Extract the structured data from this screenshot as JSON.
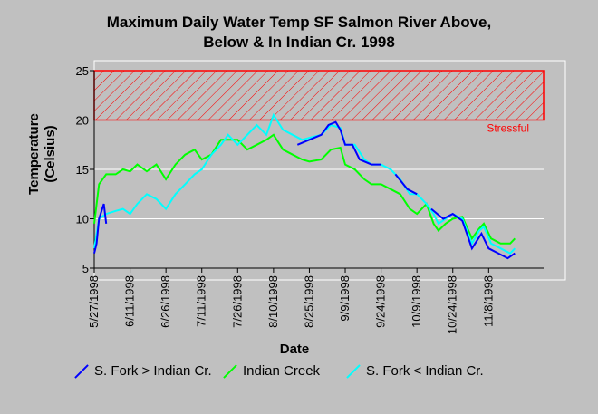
{
  "chart_data": {
    "type": "line",
    "title_line1": "Maximum Daily Water Temp SF Salmon River Above,",
    "title_line2": "Below & In Indian Cr. 1998",
    "xlabel": "Date",
    "ylabel_line1": "Temperature",
    "ylabel_line2": "(Celsius)",
    "ylim": [
      5,
      25
    ],
    "yticks": [
      5,
      10,
      15,
      20,
      25
    ],
    "xlim": [
      "1998-05-27",
      "1998-12-01"
    ],
    "xticks": [
      "5/27/1998",
      "6/11/1998",
      "6/26/1998",
      "7/11/1998",
      "7/26/1998",
      "8/10/1998",
      "8/25/1998",
      "9/9/1998",
      "9/24/1998",
      "10/9/1998",
      "10/24/1998",
      "11/8/1998"
    ],
    "annotation": {
      "label": "Stressful",
      "band": [
        20,
        25
      ]
    },
    "colors": {
      "s_fork_above": "#0000ff",
      "indian_creek": "#00ff00",
      "s_fork_below": "#00ffff",
      "stress": "#ff0000"
    },
    "series": [
      {
        "name": "S. Fork > Indian Cr.",
        "color": "#0000ff",
        "points": [
          [
            "1998-05-27",
            6.5
          ],
          [
            "1998-05-28",
            7.5
          ],
          [
            "1998-05-29",
            10
          ],
          [
            "1998-05-31",
            11.5
          ],
          [
            "1998-06-01",
            9.5
          ],
          [
            "1998-08-20",
            17.5
          ],
          [
            "1998-08-25",
            18
          ],
          [
            "1998-08-30",
            18.5
          ],
          [
            "1998-09-02",
            19.5
          ],
          [
            "1998-09-05",
            19.8
          ],
          [
            "1998-09-07",
            19.0
          ],
          [
            "1998-09-09",
            17.5
          ],
          [
            "1998-09-12",
            17.5
          ],
          [
            "1998-09-15",
            16.0
          ],
          [
            "1998-09-20",
            15.5
          ],
          [
            "1998-09-24",
            15.5
          ],
          [
            "1998-09-30",
            14.5
          ],
          [
            "1998-10-05",
            13.0
          ],
          [
            "1998-10-09",
            12.5
          ],
          [
            "1998-10-15",
            11.0
          ],
          [
            "1998-10-20",
            10.0
          ],
          [
            "1998-10-24",
            10.5
          ],
          [
            "1998-10-28",
            9.8
          ],
          [
            "1998-11-01",
            7.0
          ],
          [
            "1998-11-05",
            8.5
          ],
          [
            "1998-11-08",
            7.0
          ],
          [
            "1998-11-12",
            6.5
          ],
          [
            "1998-11-16",
            6.0
          ],
          [
            "1998-11-19",
            6.5
          ]
        ]
      },
      {
        "name": "Indian Creek",
        "color": "#00ff00",
        "points": [
          [
            "1998-05-27",
            9.5
          ],
          [
            "1998-05-29",
            13.5
          ],
          [
            "1998-06-01",
            14.5
          ],
          [
            "1998-06-05",
            14.5
          ],
          [
            "1998-06-08",
            15.0
          ],
          [
            "1998-06-11",
            14.8
          ],
          [
            "1998-06-14",
            15.5
          ],
          [
            "1998-06-18",
            14.8
          ],
          [
            "1998-06-22",
            15.5
          ],
          [
            "1998-06-26",
            14.0
          ],
          [
            "1998-06-30",
            15.5
          ],
          [
            "1998-07-04",
            16.5
          ],
          [
            "1998-07-08",
            17.0
          ],
          [
            "1998-07-11",
            16.0
          ],
          [
            "1998-07-15",
            16.5
          ],
          [
            "1998-07-19",
            18.0
          ],
          [
            "1998-07-22",
            18.0
          ],
          [
            "1998-07-26",
            18.0
          ],
          [
            "1998-07-30",
            17.0
          ],
          [
            "1998-08-03",
            17.5
          ],
          [
            "1998-08-07",
            18.0
          ],
          [
            "1998-08-10",
            18.5
          ],
          [
            "1998-08-14",
            17.0
          ],
          [
            "1998-08-18",
            16.5
          ],
          [
            "1998-08-22",
            16.0
          ],
          [
            "1998-08-25",
            15.8
          ],
          [
            "1998-08-30",
            16.0
          ],
          [
            "1998-09-03",
            17.0
          ],
          [
            "1998-09-07",
            17.2
          ],
          [
            "1998-09-09",
            15.5
          ],
          [
            "1998-09-13",
            15.0
          ],
          [
            "1998-09-17",
            14.0
          ],
          [
            "1998-09-20",
            13.5
          ],
          [
            "1998-09-24",
            13.5
          ],
          [
            "1998-09-28",
            13.0
          ],
          [
            "1998-10-02",
            12.5
          ],
          [
            "1998-10-06",
            11.0
          ],
          [
            "1998-10-09",
            10.5
          ],
          [
            "1998-10-13",
            11.5
          ],
          [
            "1998-10-16",
            9.5
          ],
          [
            "1998-10-18",
            8.8
          ],
          [
            "1998-10-21",
            9.5
          ],
          [
            "1998-10-24",
            10.0
          ],
          [
            "1998-10-28",
            10.2
          ],
          [
            "1998-11-01",
            8.0
          ],
          [
            "1998-11-04",
            9.0
          ],
          [
            "1998-11-06",
            9.5
          ],
          [
            "1998-11-09",
            8.0
          ],
          [
            "1998-11-13",
            7.5
          ],
          [
            "1998-11-17",
            7.5
          ],
          [
            "1998-11-19",
            8.0
          ]
        ]
      },
      {
        "name": "S. Fork < Indian Cr.",
        "color": "#00ffff",
        "points": [
          [
            "1998-05-27",
            7.0
          ],
          [
            "1998-05-29",
            10.0
          ],
          [
            "1998-06-01",
            10.5
          ],
          [
            "1998-06-05",
            10.8
          ],
          [
            "1998-06-08",
            11.0
          ],
          [
            "1998-06-11",
            10.5
          ],
          [
            "1998-06-14",
            11.5
          ],
          [
            "1998-06-18",
            12.5
          ],
          [
            "1998-06-22",
            12.0
          ],
          [
            "1998-06-26",
            11.0
          ],
          [
            "1998-06-30",
            12.5
          ],
          [
            "1998-07-04",
            13.5
          ],
          [
            "1998-07-08",
            14.5
          ],
          [
            "1998-07-11",
            15.0
          ],
          [
            "1998-07-15",
            16.5
          ],
          [
            "1998-07-19",
            17.5
          ],
          [
            "1998-07-22",
            18.5
          ],
          [
            "1998-07-26",
            17.5
          ],
          [
            "1998-07-30",
            18.5
          ],
          [
            "1998-08-03",
            19.5
          ],
          [
            "1998-08-07",
            18.5
          ],
          [
            "1998-08-10",
            20.5
          ],
          [
            "1998-08-14",
            19.0
          ],
          [
            "1998-08-18",
            18.5
          ],
          [
            "1998-08-22",
            18.0
          ],
          [
            "1998-08-25",
            18.2
          ],
          [
            "1998-08-30",
            18.5
          ],
          [
            "1998-09-03",
            19.5
          ],
          [
            "1998-09-07",
            19.2
          ],
          [
            "1998-09-09",
            17.5
          ],
          [
            "1998-09-13",
            17.5
          ],
          [
            "1998-09-17",
            16.0
          ],
          [
            "1998-09-20",
            15.5
          ],
          [
            "1998-09-24",
            15.5
          ],
          [
            "1998-09-28",
            15.0
          ],
          [
            "1998-10-02",
            14.0
          ],
          [
            "1998-10-06",
            12.5
          ],
          [
            "1998-10-09",
            12.5
          ],
          [
            "1998-10-13",
            11.5
          ],
          [
            "1998-10-16",
            10.5
          ],
          [
            "1998-10-18",
            9.5
          ],
          [
            "1998-10-21",
            10.0
          ],
          [
            "1998-10-24",
            10.5
          ],
          [
            "1998-10-28",
            10.0
          ],
          [
            "1998-11-01",
            7.5
          ],
          [
            "1998-11-04",
            8.8
          ],
          [
            "1998-11-06",
            9.2
          ],
          [
            "1998-11-09",
            7.5
          ],
          [
            "1998-11-13",
            7.0
          ],
          [
            "1998-11-17",
            6.5
          ],
          [
            "1998-11-19",
            7.0
          ]
        ]
      }
    ]
  }
}
